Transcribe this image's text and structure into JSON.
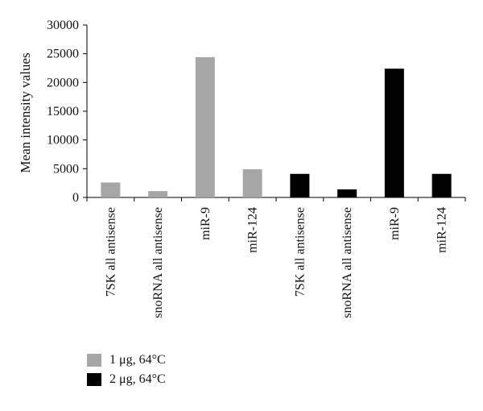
{
  "chart_data": {
    "type": "bar",
    "categories": [
      "7SK all antisense",
      "snoRNA all antisense",
      "miR-9",
      "miR-124",
      "7SK all antisense",
      "snoRNA all antisense",
      "miR-9",
      "miR-124"
    ],
    "values": [
      2600,
      1100,
      24400,
      4900,
      4100,
      1400,
      22400,
      4100
    ],
    "bar_series": [
      0,
      0,
      0,
      0,
      1,
      1,
      1,
      1
    ],
    "series": [
      {
        "name": "1 μg, 64°C",
        "color": "#a6a6a6"
      },
      {
        "name": "2 μg, 64°C",
        "color": "#000000"
      }
    ],
    "ylabel": "Mean intensity values",
    "xlabel": "",
    "title": "",
    "ylim": [
      0,
      30000
    ],
    "yticks": [
      0,
      5000,
      10000,
      15000,
      20000,
      25000,
      30000
    ],
    "ytick_labels": [
      "0",
      "5000",
      "10000",
      "15000",
      "20000",
      "25000",
      "30000"
    ],
    "grid": false,
    "legend_position": "bottom-left"
  }
}
